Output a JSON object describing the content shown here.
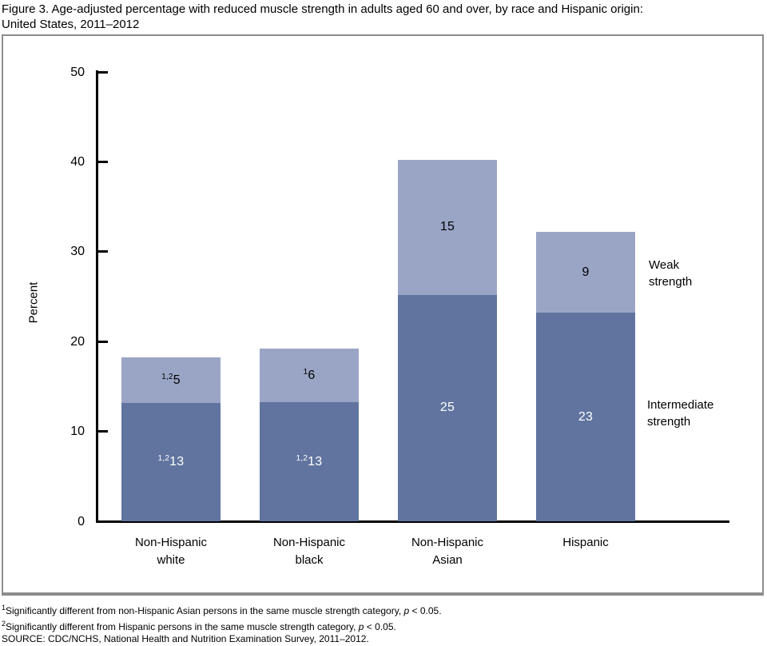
{
  "title": {
    "line1": "Figure 3. Age-adjusted percentage with reduced muscle strength in adults aged 60 and over, by race and Hispanic origin:",
    "line2": "United States, 2011–2012"
  },
  "chart_data": {
    "type": "bar",
    "stacked": true,
    "title": "Figure 3. Age-adjusted percentage with reduced muscle strength in adults aged 60 and over, by race and Hispanic origin: United States, 2011–2012",
    "ylabel": "Percent",
    "xlabel": "",
    "ylim": [
      0,
      50
    ],
    "yticks": [
      0,
      10,
      20,
      30,
      40,
      50
    ],
    "grid": false,
    "legend_position": "right-annotations",
    "categories": [
      "Non-Hispanic\nwhite",
      "Non-Hispanic\nblack",
      "Non-Hispanic\nAsian",
      "Hispanic"
    ],
    "series": [
      {
        "name": "Intermediate strength",
        "color": "#60749f",
        "values": [
          13.2,
          13.3,
          25.2,
          23.2
        ],
        "labels": [
          "13",
          "13",
          "25",
          "23"
        ],
        "label_sups": [
          "1,2",
          "1,2",
          "",
          ""
        ],
        "label_color": "#ffffff"
      },
      {
        "name": "Weak strength",
        "color": "#9aa5c6",
        "values": [
          5.0,
          5.9,
          15.0,
          9.0
        ],
        "labels": [
          "5",
          "6",
          "15",
          "9"
        ],
        "label_sups": [
          "1,2",
          "1",
          "",
          ""
        ],
        "label_color": "#000000"
      }
    ],
    "annotations": {
      "weak": "Weak\nstrength",
      "intermediate": "Intermediate\nstrength"
    }
  },
  "footnotes": {
    "fn1": {
      "sup": "1",
      "text": "Significantly different from non-Hispanic Asian persons in the same muscle strength category, ",
      "pvar": "p",
      "tail": " < 0.05."
    },
    "fn2": {
      "sup": "2",
      "text": "Significantly different from Hispanic persons in the same muscle strength category, ",
      "pvar": "p",
      "tail": " < 0.05."
    },
    "source": "SOURCE: CDC/NCHS, National Health and Nutrition Examination Survey, 2011–2012."
  }
}
